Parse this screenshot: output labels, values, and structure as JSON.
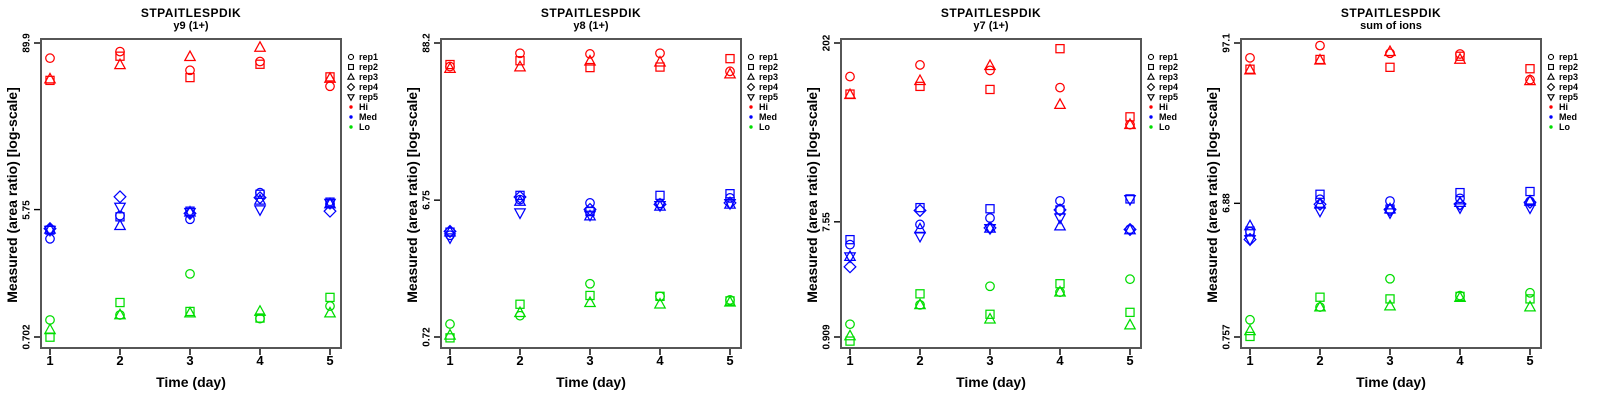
{
  "figure": {
    "xlabel": "Time (day)",
    "ylabel": "Measured (area ratio) [log-scale]",
    "x_ticks": [
      "1",
      "2",
      "3",
      "4",
      "5"
    ],
    "legend": {
      "reps": [
        {
          "label": "rep1",
          "symbol": "circle"
        },
        {
          "label": "rep2",
          "symbol": "square"
        },
        {
          "label": "rep3",
          "symbol": "triangle-up"
        },
        {
          "label": "rep4",
          "symbol": "diamond"
        },
        {
          "label": "rep5",
          "symbol": "triangle-down"
        }
      ],
      "levels": [
        {
          "label": "Hi",
          "color": "#FF0000"
        },
        {
          "label": "Med",
          "color": "#0000FF"
        },
        {
          "label": "Lo",
          "color": "#00DD00"
        }
      ]
    },
    "colors": {
      "hi": "#FF0000",
      "med": "#0000FF",
      "lo": "#00DD00",
      "frame": "#565656",
      "text": "#000000"
    }
  },
  "chart_data": [
    {
      "type": "scatter",
      "title": "STPAITLESPDIK",
      "subtitle": "y9 (1+)",
      "xlabel": "Time (day)",
      "ylabel": "Measured (area ratio) [log-scale]",
      "yscale": "log",
      "x": [
        1,
        2,
        3,
        4,
        5
      ],
      "ytick_labels": [
        "89.9",
        "5.75",
        "0.702"
      ],
      "series": [
        {
          "rep": "rep1",
          "level": "Hi",
          "symbol": "circle",
          "color": "#FF0000",
          "values": [
            70,
            78,
            57.3,
            66.2,
            44
          ]
        },
        {
          "rep": "rep2",
          "level": "Hi",
          "symbol": "square",
          "color": "#FF0000",
          "values": [
            48.5,
            72.3,
            50.8,
            63.3,
            51.4
          ]
        },
        {
          "rep": "rep3",
          "level": "Hi",
          "symbol": "triangle-up",
          "color": "#FF0000",
          "values": [
            49.5,
            62.6,
            71.6,
            83.4,
            50
          ]
        },
        {
          "rep": "rep1",
          "level": "Med",
          "symbol": "circle",
          "color": "#0000FF",
          "values": [
            3.55,
            5.2,
            4.9,
            7.6,
            6.3
          ]
        },
        {
          "rep": "rep2",
          "level": "Med",
          "symbol": "square",
          "color": "#0000FF",
          "values": [
            4.1,
            5.1,
            5.6,
            7.4,
            6.5
          ]
        },
        {
          "rep": "rep3",
          "level": "Med",
          "symbol": "triangle-up",
          "color": "#0000FF",
          "values": [
            4.15,
            4.4,
            5.5,
            6.7,
            6.3
          ]
        },
        {
          "rep": "rep4",
          "level": "Med",
          "symbol": "diamond",
          "color": "#0000FF",
          "values": [
            4.2,
            7.1,
            5.4,
            7.0,
            5.6
          ]
        },
        {
          "rep": "rep5",
          "level": "Med",
          "symbol": "triangle-down",
          "color": "#0000FF",
          "values": [
            4.1,
            6.0,
            5.5,
            5.75,
            6.4
          ]
        },
        {
          "rep": "rep1",
          "level": "Lo",
          "symbol": "circle",
          "color": "#00DD00",
          "values": [
            0.93,
            1.01,
            1.99,
            0.95,
            1.17
          ]
        },
        {
          "rep": "rep2",
          "level": "Lo",
          "symbol": "square",
          "color": "#00DD00",
          "values": [
            0.7,
            1.24,
            1.07,
            0.96,
            1.35
          ]
        },
        {
          "rep": "rep3",
          "level": "Lo",
          "symbol": "triangle-up",
          "color": "#00DD00",
          "values": [
            0.79,
            1.01,
            1.04,
            1.07,
            1.04
          ]
        }
      ]
    },
    {
      "type": "scatter",
      "title": "STPAITLESPDIK",
      "subtitle": "y8 (1+)",
      "xlabel": "Time (day)",
      "ylabel": "Measured (area ratio) [log-scale]",
      "yscale": "log",
      "x": [
        1,
        2,
        3,
        4,
        5
      ],
      "ytick_labels": [
        "88.2",
        "6.75",
        "0.72"
      ],
      "series": [
        {
          "rep": "rep1",
          "level": "Hi",
          "symbol": "circle",
          "color": "#FF0000",
          "values": [
            60,
            74.6,
            73.8,
            74.6,
            55.5
          ]
        },
        {
          "rep": "rep2",
          "level": "Hi",
          "symbol": "square",
          "color": "#FF0000",
          "values": [
            62,
            66,
            59,
            59.5,
            68.3
          ]
        },
        {
          "rep": "rep3",
          "level": "Hi",
          "symbol": "triangle-up",
          "color": "#FF0000",
          "values": [
            58,
            59.5,
            65.4,
            64.4,
            53
          ]
        },
        {
          "rep": "rep1",
          "level": "Med",
          "symbol": "circle",
          "color": "#0000FF",
          "values": [
            3.8,
            6.8,
            6.45,
            6.4,
            7.0
          ]
        },
        {
          "rep": "rep2",
          "level": "Med",
          "symbol": "square",
          "color": "#0000FF",
          "values": [
            4.0,
            7.3,
            5.6,
            7.3,
            7.5
          ]
        },
        {
          "rep": "rep3",
          "level": "Med",
          "symbol": "triangle-up",
          "color": "#0000FF",
          "values": [
            4.0,
            6.6,
            5.2,
            6.1,
            6.3
          ]
        },
        {
          "rep": "rep4",
          "level": "Med",
          "symbol": "diamond",
          "color": "#0000FF",
          "values": [
            4.05,
            7.1,
            5.8,
            6.3,
            6.45
          ]
        },
        {
          "rep": "rep5",
          "level": "Med",
          "symbol": "triangle-down",
          "color": "#0000FF",
          "values": [
            3.66,
            5.5,
            5.3,
            6.2,
            6.4
          ]
        },
        {
          "rep": "rep1",
          "level": "Lo",
          "symbol": "circle",
          "color": "#00DD00",
          "values": [
            0.89,
            1.02,
            1.72,
            1.4,
            1.32
          ]
        },
        {
          "rep": "rep2",
          "level": "Lo",
          "symbol": "square",
          "color": "#00DD00",
          "values": [
            0.71,
            1.23,
            1.42,
            1.4,
            1.3
          ]
        },
        {
          "rep": "rep3",
          "level": "Lo",
          "symbol": "triangle-up",
          "color": "#00DD00",
          "values": [
            0.74,
            1.07,
            1.26,
            1.23,
            1.27
          ]
        }
      ]
    },
    {
      "type": "scatter",
      "title": "STPAITLESPDIK",
      "subtitle": "y7 (1+)",
      "xlabel": "Time (day)",
      "ylabel": "Measured (area ratio) [log-scale]",
      "yscale": "log",
      "x": [
        1,
        2,
        3,
        4,
        5
      ],
      "ytick_labels": [
        "202",
        "7.55",
        "0.909"
      ],
      "series": [
        {
          "rep": "rep1",
          "level": "Hi",
          "symbol": "circle",
          "color": "#FF0000",
          "values": [
            109,
            135,
            122,
            89,
            45
          ]
        },
        {
          "rep": "rep2",
          "level": "Hi",
          "symbol": "square",
          "color": "#FF0000",
          "values": [
            79,
            91,
            86,
            182,
            52
          ]
        },
        {
          "rep": "rep3",
          "level": "Hi",
          "symbol": "triangle-up",
          "color": "#FF0000",
          "values": [
            78,
            101,
            133,
            65,
            45
          ]
        },
        {
          "rep": "rep1",
          "level": "Med",
          "symbol": "circle",
          "color": "#0000FF",
          "values": [
            4.96,
            7.2,
            8.1,
            11.1,
            6.6
          ]
        },
        {
          "rep": "rep2",
          "level": "Med",
          "symbol": "square",
          "color": "#0000FF",
          "values": [
            5.44,
            9.8,
            9.6,
            9.4,
            11.5
          ]
        },
        {
          "rep": "rep3",
          "level": "Med",
          "symbol": "triangle-up",
          "color": "#0000FF",
          "values": [
            3.98,
            6.6,
            6.7,
            6.97,
            6.5
          ]
        },
        {
          "rep": "rep4",
          "level": "Med",
          "symbol": "diamond",
          "color": "#0000FF",
          "values": [
            3.3,
            9.3,
            6.75,
            9.4,
            6.55
          ]
        },
        {
          "rep": "rep5",
          "level": "Med",
          "symbol": "triangle-down",
          "color": "#0000FF",
          "values": [
            3.98,
            5.8,
            6.7,
            8.13,
            11.4
          ]
        },
        {
          "rep": "rep1",
          "level": "Lo",
          "symbol": "circle",
          "color": "#00DD00",
          "values": [
            1.15,
            1.64,
            2.31,
            2.07,
            2.63
          ]
        },
        {
          "rep": "rep2",
          "level": "Lo",
          "symbol": "square",
          "color": "#00DD00",
          "values": [
            0.843,
            2.01,
            1.38,
            2.42,
            1.43
          ]
        },
        {
          "rep": "rep3",
          "level": "Lo",
          "symbol": "triangle-up",
          "color": "#00DD00",
          "values": [
            0.925,
            1.64,
            1.26,
            2.07,
            1.13
          ]
        }
      ]
    },
    {
      "type": "scatter",
      "title": "STPAITLESPDIK",
      "subtitle": "sum of ions",
      "xlabel": "Time (day)",
      "ylabel": "Measured (area ratio) [log-scale]",
      "yscale": "log",
      "x": [
        1,
        2,
        3,
        4,
        5
      ],
      "ytick_labels": [
        "97.1",
        "6.88",
        "0.757"
      ],
      "series": [
        {
          "rep": "rep1",
          "level": "Hi",
          "symbol": "circle",
          "color": "#FF0000",
          "values": [
            76,
            93,
            82,
            81,
            53
          ]
        },
        {
          "rep": "rep2",
          "level": "Hi",
          "symbol": "square",
          "color": "#FF0000",
          "values": [
            63,
            74,
            65,
            78,
            63.5
          ]
        },
        {
          "rep": "rep3",
          "level": "Hi",
          "symbol": "triangle-up",
          "color": "#FF0000",
          "values": [
            62,
            73,
            84,
            74,
            52
          ]
        },
        {
          "rep": "rep1",
          "level": "Med",
          "symbol": "circle",
          "color": "#0000FF",
          "values": [
            4.3,
            7.35,
            7.15,
            7.47,
            7.1
          ]
        },
        {
          "rep": "rep2",
          "level": "Med",
          "symbol": "square",
          "color": "#0000FF",
          "values": [
            4.35,
            7.99,
            6.25,
            8.21,
            8.36
          ]
        },
        {
          "rep": "rep3",
          "level": "Med",
          "symbol": "triangle-up",
          "color": "#0000FF",
          "values": [
            4.73,
            6.77,
            6.25,
            6.96,
            7.1
          ]
        },
        {
          "rep": "rep4",
          "level": "Med",
          "symbol": "diamond",
          "color": "#0000FF",
          "values": [
            3.79,
            6.77,
            6.2,
            6.8,
            7.0
          ]
        },
        {
          "rep": "rep5",
          "level": "Med",
          "symbol": "triangle-down",
          "color": "#0000FF",
          "values": [
            3.79,
            6.06,
            5.9,
            6.41,
            6.4
          ]
        },
        {
          "rep": "rep1",
          "level": "Lo",
          "symbol": "circle",
          "color": "#00DD00",
          "values": [
            1.006,
            1.24,
            1.98,
            1.5,
            1.57
          ]
        },
        {
          "rep": "rep2",
          "level": "Lo",
          "symbol": "square",
          "color": "#00DD00",
          "values": [
            0.764,
            1.46,
            1.42,
            1.48,
            1.42
          ]
        },
        {
          "rep": "rep3",
          "level": "Lo",
          "symbol": "triangle-up",
          "color": "#00DD00",
          "values": [
            0.838,
            1.24,
            1.26,
            1.45,
            1.24
          ]
        }
      ]
    }
  ]
}
